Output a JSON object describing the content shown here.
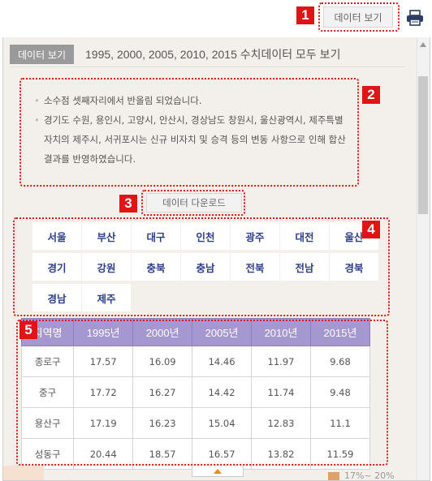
{
  "toolbar": {
    "data_view_label": "데이터 보기",
    "print_icon": "printer-icon"
  },
  "panel": {
    "data_view_tab": "데이터 보기",
    "years_text": "1995, 2000, 2005, 2010, 2015 수치데이터 모두 보기"
  },
  "notes": [
    "소수점 셋째자리에서 반올림 되었습니다.",
    "경기도 수원, 용인시, 고양시, 안산시, 경상남도 창원시, 울산광역시, 제주특별자치의 제주시, 서귀포시는 신규 비자치 및 승격 등의 변동 사항으로 인해 합산결과를 반영하였습니다."
  ],
  "download_label": "데이터 다운로드",
  "regions": [
    "서울",
    "부산",
    "대구",
    "인천",
    "광주",
    "대전",
    "울산",
    "경기",
    "강원",
    "충북",
    "충남",
    "전북",
    "전남",
    "경북",
    "경남",
    "제주"
  ],
  "table": {
    "headers": [
      "지역명",
      "1995년",
      "2000년",
      "2005년",
      "2010년",
      "2015년"
    ],
    "rows": [
      [
        "종로구",
        "17.57",
        "16.09",
        "14.46",
        "11.97",
        "9.68"
      ],
      [
        "중구",
        "17.72",
        "16.27",
        "14.42",
        "11.74",
        "9.48"
      ],
      [
        "용산구",
        "17.19",
        "16.23",
        "15.04",
        "12.83",
        "11.1"
      ],
      [
        "성동구",
        "20.44",
        "18.57",
        "16.57",
        "13.82",
        "11.59"
      ]
    ]
  },
  "badges": [
    "1",
    "2",
    "3",
    "4",
    "5"
  ],
  "legend_partial": "17%~ 20%",
  "colors": {
    "accent_red": "#e01414",
    "header_purple": "#a597d0",
    "region_text": "#2d3e8c"
  }
}
